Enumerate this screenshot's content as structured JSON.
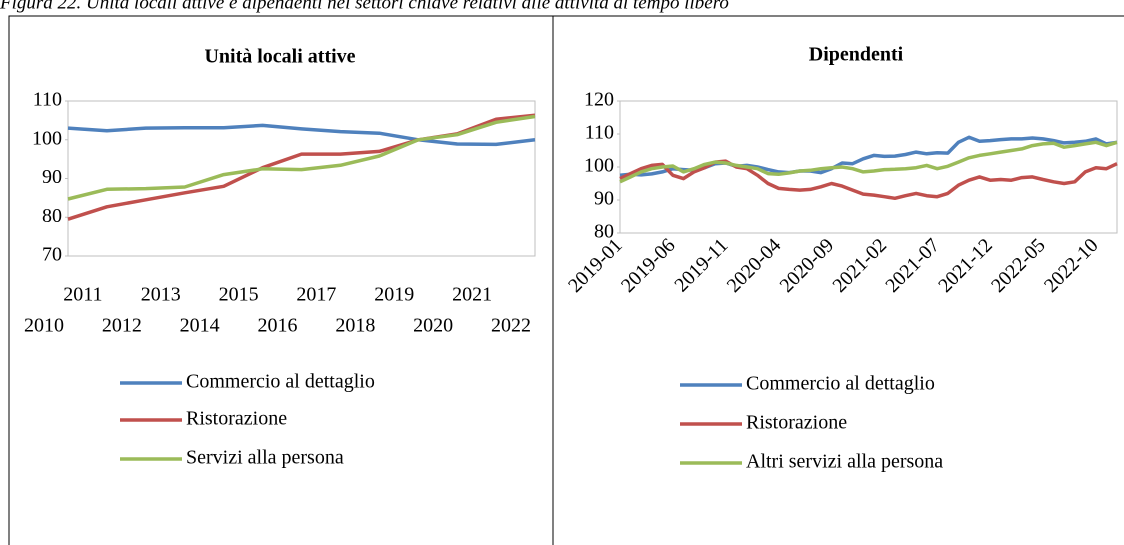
{
  "caption": "Figura 22. Unità locali attive e dipendenti nei settori chiave relativi alle attività di tempo libero",
  "chart_data": [
    {
      "type": "line",
      "title": "Unità locali attive",
      "categories": [
        "2010",
        "2011",
        "2012",
        "2013",
        "2014",
        "2015",
        "2016",
        "2017",
        "2018",
        "2019",
        "2020",
        "2021",
        "2022"
      ],
      "series": [
        {
          "name": "Commercio al dettaglio",
          "color": "#4f81bd",
          "values": [
            103,
            102.3,
            103,
            103.1,
            103.1,
            103.7,
            102.8,
            102.1,
            101.7,
            100,
            98.9,
            98.8,
            100
          ]
        },
        {
          "name": "Ristorazione",
          "color": "#c0504d",
          "values": [
            79.5,
            82.7,
            84.5,
            86.3,
            88,
            92.8,
            96.3,
            96.3,
            97,
            100,
            101.5,
            105.3,
            106.3
          ]
        },
        {
          "name": "Servizi alla persona",
          "color": "#9bbb59",
          "values": [
            84.7,
            87.2,
            87.4,
            87.8,
            91,
            92.5,
            92.3,
            93.4,
            95.8,
            100,
            101.3,
            104.5,
            106
          ]
        }
      ],
      "ylim": [
        70,
        110
      ],
      "yticks": [
        70,
        80,
        90,
        100,
        110
      ],
      "grid": false,
      "legend": "bottom"
    },
    {
      "type": "line",
      "title": "Dipendenti",
      "categories": [
        "2019-01",
        null,
        null,
        null,
        null,
        "2019-06",
        null,
        null,
        null,
        null,
        "2019-11",
        null,
        null,
        null,
        null,
        "2020-04",
        null,
        null,
        null,
        null,
        "2020-09",
        null,
        null,
        null,
        null,
        "2021-02",
        null,
        null,
        null,
        null,
        "2021-07",
        null,
        null,
        null,
        null,
        "2021-12",
        null,
        null,
        null,
        null,
        "2022-05",
        null,
        null,
        null,
        null,
        "2022-10",
        null,
        null
      ],
      "series": [
        {
          "name": "Commercio al dettaglio",
          "color": "#4f81bd",
          "values": [
            97.5,
            97.8,
            97.6,
            97.9,
            98.5,
            99.5,
            99.2,
            99,
            99.8,
            101,
            101.2,
            100.2,
            100.5,
            100,
            99.2,
            98.5,
            98.3,
            98.8,
            98.8,
            98.3,
            99.5,
            101.2,
            101,
            102.5,
            103.5,
            103.2,
            103.3,
            103.8,
            104.5,
            104,
            104.3,
            104.2,
            107.5,
            109,
            107.8,
            108,
            108.3,
            108.5,
            108.5,
            108.8,
            108.5,
            108,
            107.3,
            107.5,
            107.8,
            108.5,
            107,
            107.5
          ]
        },
        {
          "name": "Ristorazione",
          "color": "#c0504d",
          "values": [
            96.5,
            98,
            99.5,
            100.5,
            100.8,
            97.5,
            96.5,
            98.5,
            99.8,
            101.5,
            101.8,
            100,
            99.5,
            97.5,
            95,
            93.5,
            93.2,
            93,
            93.2,
            94,
            95,
            94.2,
            93,
            91.8,
            91.5,
            91,
            90.5,
            91.3,
            92,
            91.3,
            91,
            92,
            94.5,
            96,
            97,
            96,
            96.2,
            96,
            96.8,
            97,
            96.2,
            95.5,
            95,
            95.5,
            98.5,
            99.8,
            99.5,
            101
          ]
        },
        {
          "name": "Altri servizi alla persona",
          "color": "#9bbb59",
          "values": [
            95.5,
            97,
            98.5,
            99.5,
            100,
            100.3,
            98.5,
            99.5,
            100.8,
            101.5,
            101.2,
            100.5,
            100,
            99.5,
            98,
            97.8,
            98.2,
            98.8,
            99,
            99.5,
            99.8,
            100,
            99.5,
            98.5,
            98.8,
            99.2,
            99.3,
            99.5,
            99.8,
            100.5,
            99.5,
            100.2,
            101.5,
            102.8,
            103.5,
            104,
            104.5,
            105,
            105.5,
            106.5,
            107,
            107.2,
            106,
            106.5,
            107,
            107.5,
            106.5,
            107.5
          ]
        }
      ],
      "ylim": [
        80,
        120
      ],
      "yticks": [
        80,
        90,
        100,
        110,
        120
      ],
      "grid": false,
      "legend": "bottom"
    }
  ]
}
